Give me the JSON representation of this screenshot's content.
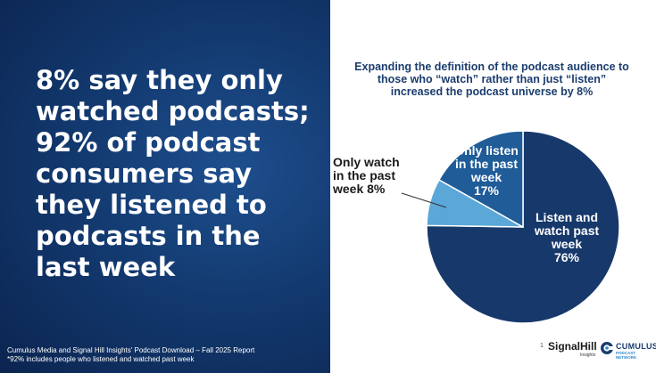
{
  "headline": "8% say they only watched podcasts; 92% of podcast consumers say they listened to podcasts in the last week",
  "source": {
    "line1": "Cumulus Media and Signal Hill Insights' Podcast Download – Fall 2025 Report",
    "line2": "*92% includes people who listened and watched past week"
  },
  "chart_data": {
    "type": "pie",
    "title": "Expanding the definition of the podcast audience to those who “watch” rather than just “listen” increased the podcast universe by 8%",
    "slices": [
      {
        "label": "Listen and watch past week",
        "value": 76,
        "display": "76%",
        "color": "#17386a"
      },
      {
        "label": "Only watch in the past week",
        "value": 8,
        "display": "8%",
        "color": "#5aa7d8"
      },
      {
        "label": "Only listen in the past week",
        "value": 17,
        "display": "17%",
        "color": "#1f5c98"
      }
    ]
  },
  "labels": {
    "listen_watch": {
      "line1": "Listen and",
      "line2": "watch past",
      "line3": "week",
      "line4": "76%"
    },
    "only_listen": {
      "line1": "Only listen",
      "line2": "in the past",
      "line3": "week",
      "line4": "17%"
    },
    "only_watch": {
      "line1": "Only watch",
      "line2": "in the past",
      "line3": "week 8%"
    }
  },
  "footer": {
    "page_number": "1",
    "signalhill": "SignalHill",
    "signalhill_sub": "Insights",
    "cumulus": "CUMULUS",
    "cumulus_sub": "PODCAST NETWORK"
  },
  "colors": {
    "panel_dark": "#0b2450",
    "panel_light": "#1e4f8e",
    "title_text": "#1b3d6e"
  }
}
